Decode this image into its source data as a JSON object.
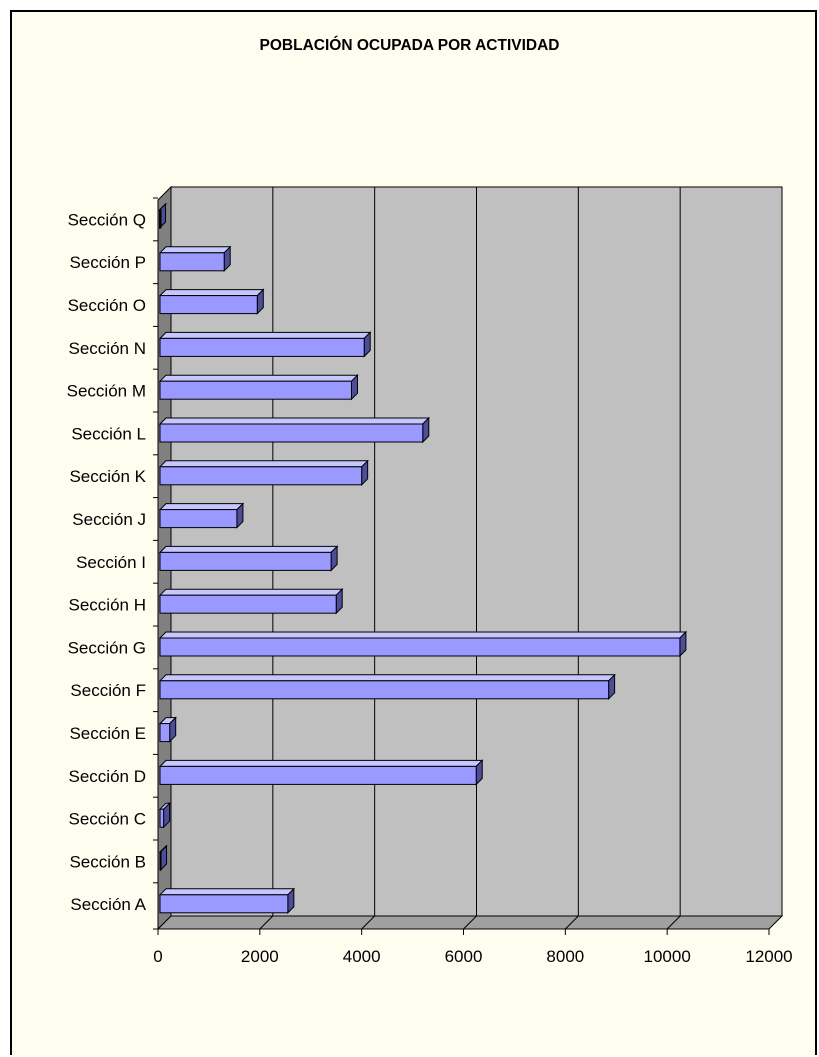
{
  "chart_data": {
    "type": "bar",
    "orientation": "horizontal",
    "title": "POBLACIÓN OCUPADA POR ACTIVIDAD",
    "xlabel": "",
    "ylabel": "",
    "xlim": [
      0,
      12000
    ],
    "x_ticks": [
      "0",
      "2000",
      "4000",
      "6000",
      "8000",
      "10000",
      "12000"
    ],
    "grid": true,
    "legend": "none",
    "style": "3d",
    "categories": [
      "Sección A",
      "Sección B",
      "Sección C",
      "Sección D",
      "Sección E",
      "Sección F",
      "Sección G",
      "Sección H",
      "Sección I",
      "Sección J",
      "Sección K",
      "Sección L",
      "Sección M",
      "Sección N",
      "Sección O",
      "Sección P",
      "Sección Q"
    ],
    "series": [
      {
        "values": [
          2550,
          50,
          110,
          6250,
          230,
          8850,
          10250,
          3500,
          3400,
          1550,
          4000,
          5200,
          3800,
          4050,
          1950,
          1300,
          30
        ]
      }
    ],
    "colors": {
      "bar_front": "#9999ff",
      "bar_top": "#c7c7ff",
      "bar_side": "#4d4d99",
      "plot_back": "#c0c0c0",
      "plot_side": "#808080",
      "plot_floor": "#a0a0a0",
      "frame_bg": "#fffcf0"
    }
  }
}
